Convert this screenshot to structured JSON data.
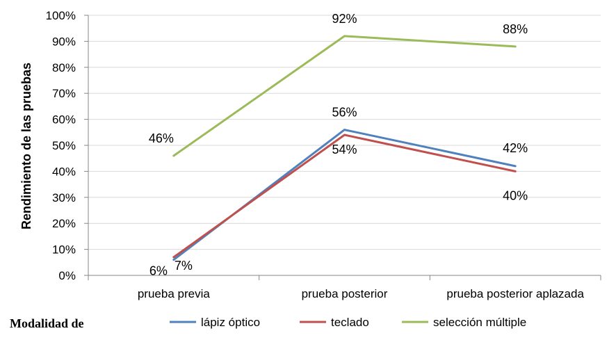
{
  "chart_data": {
    "type": "line",
    "title": "",
    "xlabel": "",
    "ylabel": "Rendimiento de las pruebas",
    "categories": [
      "prueba previa",
      "prueba posterior",
      "prueba posterior aplazada"
    ],
    "ylim": [
      0,
      100
    ],
    "yticks": [
      "0%",
      "10%",
      "20%",
      "30%",
      "40%",
      "50%",
      "60%",
      "70%",
      "80%",
      "90%",
      "100%"
    ],
    "grid": true,
    "legend_position": "bottom",
    "series": [
      {
        "name": "lápiz óptico",
        "color": "#4f81bd",
        "values": [
          6,
          56,
          42
        ],
        "labels": [
          "6%",
          "56%",
          "42%"
        ]
      },
      {
        "name": "teclado",
        "color": "#c0504d",
        "values": [
          7,
          54,
          40
        ],
        "labels": [
          "7%",
          "54%",
          "40%"
        ]
      },
      {
        "name": "selección múltiple",
        "color": "#9bbb59",
        "values": [
          46,
          92,
          88
        ],
        "labels": [
          "46%",
          "92%",
          "88%"
        ]
      }
    ]
  },
  "footer": {
    "text": "Modalidad de"
  }
}
